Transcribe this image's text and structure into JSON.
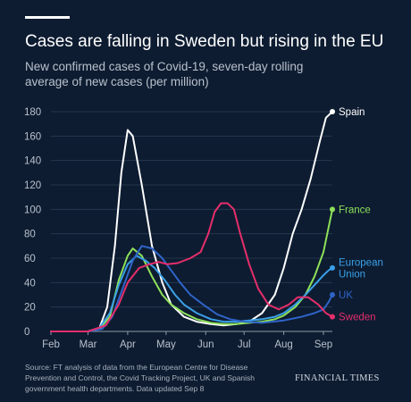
{
  "header": {
    "title": "Cases are falling in Sweden but rising in the EU",
    "subtitle": "New confirmed cases of Covid-19, seven-day rolling average of new cases (per million)"
  },
  "footer": {
    "source": "Source: FT analysis of data from the European Centre for Disease Prevention and Control, the Covid Tracking Project, UK and Spanish government health departments. Data updated Sep 8",
    "brand": "FINANCIAL TIMES"
  },
  "chart_data": {
    "type": "line",
    "xlabel": "",
    "ylabel": "",
    "x_ticks": [
      "Feb",
      "Mar",
      "Apr",
      "May",
      "Jun",
      "Jul",
      "Aug",
      "Sep"
    ],
    "y_ticks": [
      0,
      20,
      40,
      60,
      80,
      100,
      120,
      140,
      160,
      180
    ],
    "xlim": [
      "2020-02-01",
      "2020-09-08"
    ],
    "ylim": [
      0,
      180
    ],
    "grid": true,
    "legend": "end-of-line labels",
    "series": [
      {
        "name": "Spain",
        "color": "#ffffff",
        "x": [
          "2020-02-01",
          "2020-03-01",
          "2020-03-10",
          "2020-03-16",
          "2020-03-22",
          "2020-03-27",
          "2020-04-01",
          "2020-04-05",
          "2020-04-12",
          "2020-04-20",
          "2020-04-28",
          "2020-05-05",
          "2020-05-15",
          "2020-05-25",
          "2020-06-05",
          "2020-06-15",
          "2020-06-25",
          "2020-07-05",
          "2020-07-15",
          "2020-07-25",
          "2020-08-01",
          "2020-08-08",
          "2020-08-15",
          "2020-08-22",
          "2020-08-29",
          "2020-09-03",
          "2020-09-08"
        ],
        "y": [
          0,
          0,
          3,
          20,
          70,
          130,
          165,
          160,
          120,
          70,
          40,
          22,
          12,
          8,
          6,
          5,
          6,
          8,
          15,
          30,
          52,
          80,
          100,
          125,
          155,
          175,
          180
        ]
      },
      {
        "name": "France",
        "color": "#8ee05a",
        "x": [
          "2020-02-01",
          "2020-03-01",
          "2020-03-10",
          "2020-03-18",
          "2020-03-25",
          "2020-04-01",
          "2020-04-05",
          "2020-04-12",
          "2020-04-20",
          "2020-04-28",
          "2020-05-05",
          "2020-05-15",
          "2020-05-25",
          "2020-06-05",
          "2020-06-15",
          "2020-06-25",
          "2020-07-05",
          "2020-07-15",
          "2020-07-25",
          "2020-08-01",
          "2020-08-10",
          "2020-08-18",
          "2020-08-25",
          "2020-09-01",
          "2020-09-05",
          "2020-09-08"
        ],
        "y": [
          0,
          0,
          2,
          12,
          42,
          62,
          68,
          62,
          45,
          30,
          22,
          15,
          10,
          7,
          6,
          6,
          7,
          8,
          10,
          13,
          20,
          30,
          45,
          65,
          85,
          100
        ]
      },
      {
        "name": "European Union",
        "color": "#3aa0e8",
        "x": [
          "2020-02-01",
          "2020-03-01",
          "2020-03-10",
          "2020-03-18",
          "2020-03-25",
          "2020-04-01",
          "2020-04-08",
          "2020-04-15",
          "2020-04-22",
          "2020-04-30",
          "2020-05-08",
          "2020-05-15",
          "2020-05-25",
          "2020-06-05",
          "2020-06-15",
          "2020-06-25",
          "2020-07-05",
          "2020-07-15",
          "2020-07-25",
          "2020-08-01",
          "2020-08-10",
          "2020-08-18",
          "2020-08-25",
          "2020-09-01",
          "2020-09-05",
          "2020-09-08"
        ],
        "y": [
          0,
          0,
          3,
          15,
          38,
          55,
          62,
          58,
          52,
          42,
          30,
          22,
          15,
          10,
          8,
          8,
          9,
          10,
          12,
          15,
          22,
          30,
          38,
          46,
          50,
          52
        ]
      },
      {
        "name": "UK",
        "color": "#2f64c8",
        "x": [
          "2020-02-01",
          "2020-03-01",
          "2020-03-12",
          "2020-03-20",
          "2020-03-28",
          "2020-04-05",
          "2020-04-12",
          "2020-04-20",
          "2020-04-28",
          "2020-05-05",
          "2020-05-12",
          "2020-05-20",
          "2020-05-30",
          "2020-06-10",
          "2020-06-20",
          "2020-07-01",
          "2020-07-15",
          "2020-08-01",
          "2020-08-15",
          "2020-08-25",
          "2020-09-01",
          "2020-09-05",
          "2020-09-08"
        ],
        "y": [
          0,
          0,
          2,
          12,
          35,
          58,
          70,
          68,
          60,
          50,
          40,
          30,
          22,
          14,
          10,
          8,
          7,
          9,
          12,
          15,
          18,
          24,
          30
        ]
      },
      {
        "name": "Sweden",
        "color": "#e62e6b",
        "x": [
          "2020-02-01",
          "2020-03-01",
          "2020-03-15",
          "2020-03-25",
          "2020-04-01",
          "2020-04-10",
          "2020-04-18",
          "2020-04-25",
          "2020-05-02",
          "2020-05-10",
          "2020-05-20",
          "2020-05-28",
          "2020-06-03",
          "2020-06-08",
          "2020-06-13",
          "2020-06-18",
          "2020-06-23",
          "2020-06-28",
          "2020-07-05",
          "2020-07-12",
          "2020-07-20",
          "2020-07-28",
          "2020-08-05",
          "2020-08-12",
          "2020-08-20",
          "2020-08-28",
          "2020-09-03",
          "2020-09-08"
        ],
        "y": [
          0,
          0,
          5,
          22,
          40,
          52,
          55,
          57,
          55,
          56,
          60,
          65,
          80,
          98,
          105,
          105,
          100,
          80,
          55,
          35,
          22,
          18,
          22,
          28,
          28,
          22,
          15,
          12
        ]
      }
    ],
    "labels": {
      "Spain": "Spain",
      "France": "France",
      "European Union": "European\nUnion",
      "UK": "UK",
      "Sweden": "Sweden"
    }
  }
}
